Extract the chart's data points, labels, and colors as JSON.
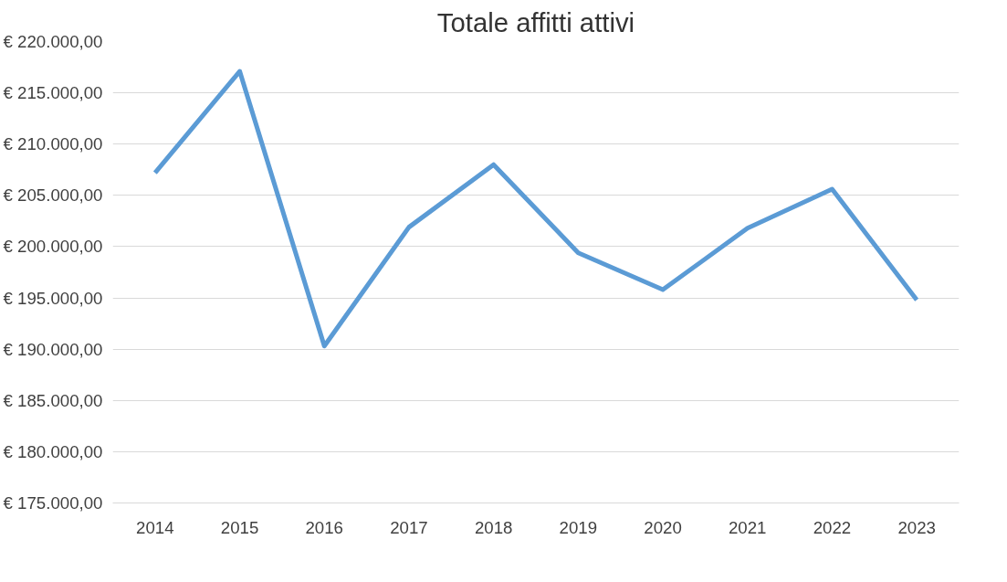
{
  "chart_data": {
    "type": "line",
    "title": "Totale affitti attivi",
    "categories": [
      "2014",
      "2015",
      "2016",
      "2017",
      "2018",
      "2019",
      "2020",
      "2021",
      "2022",
      "2023"
    ],
    "series": [
      {
        "color": "#5b9bd5",
        "values": [
          207200,
          217100,
          190300,
          201900,
          208000,
          199400,
          195800,
          201800,
          205600,
          194800
        ]
      }
    ],
    "ylim": [
      175000,
      220000
    ],
    "yticks": [
      {
        "value": 175000,
        "label": "€ 175.000,00"
      },
      {
        "value": 180000,
        "label": "€ 180.000,00"
      },
      {
        "value": 185000,
        "label": "€ 185.000,00"
      },
      {
        "value": 190000,
        "label": "€ 190.000,00"
      },
      {
        "value": 195000,
        "label": "€ 195.000,00"
      },
      {
        "value": 200000,
        "label": "€ 200.000,00"
      },
      {
        "value": 205000,
        "label": "€ 205.000,00"
      },
      {
        "value": 210000,
        "label": "€ 210.000,00"
      },
      {
        "value": 215000,
        "label": "€ 215.000,00"
      },
      {
        "value": 220000,
        "label": "€ 220.000,00"
      }
    ],
    "grid": "y",
    "line_style": "solid"
  }
}
